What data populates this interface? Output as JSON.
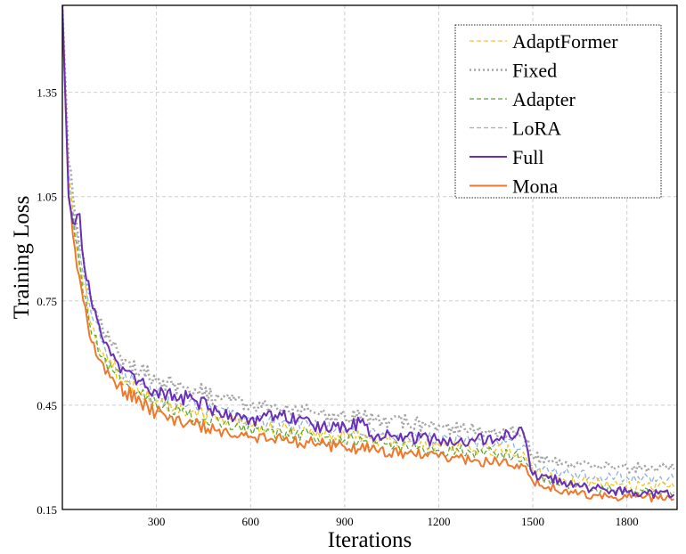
{
  "chart_data": {
    "type": "line",
    "title": "",
    "xlabel": "Iterations",
    "ylabel": "Training Loss",
    "xlim": [
      0,
      1960
    ],
    "ylim": [
      0.15,
      1.6
    ],
    "xticks": [
      300,
      600,
      900,
      1200,
      1500,
      1800
    ],
    "yticks": [
      0.15,
      0.45,
      0.75,
      1.05,
      1.35
    ],
    "ytick_labels": [
      "0.15",
      "0.45",
      "0.75",
      "1.05",
      "1.35"
    ],
    "grid": true,
    "legend_position": "top-right",
    "series": [
      {
        "name": "AdaptFormer",
        "color": "#f5c518",
        "dash": "dashed",
        "x": [
          0,
          20,
          40,
          60,
          80,
          100,
          130,
          160,
          200,
          250,
          300,
          400,
          500,
          600,
          700,
          800,
          900,
          1000,
          1100,
          1200,
          1300,
          1400,
          1470,
          1500,
          1550,
          1600,
          1650,
          1700,
          1750,
          1800,
          1850,
          1900,
          1950
        ],
        "y": [
          1.6,
          1.1,
          0.95,
          0.84,
          0.74,
          0.67,
          0.6,
          0.56,
          0.52,
          0.49,
          0.46,
          0.43,
          0.41,
          0.39,
          0.385,
          0.37,
          0.365,
          0.35,
          0.345,
          0.335,
          0.325,
          0.32,
          0.315,
          0.26,
          0.245,
          0.235,
          0.23,
          0.225,
          0.222,
          0.22,
          0.218,
          0.217,
          0.215
        ]
      },
      {
        "name": "Fixed",
        "color": "#a6a6a6",
        "dash": "dotted",
        "x": [
          0,
          20,
          40,
          60,
          80,
          100,
          130,
          160,
          200,
          250,
          300,
          400,
          500,
          600,
          700,
          800,
          900,
          1000,
          1100,
          1200,
          1300,
          1400,
          1470,
          1500,
          1550,
          1600,
          1650,
          1700,
          1750,
          1800,
          1850,
          1900,
          1950
        ],
        "y": [
          1.6,
          1.15,
          1.0,
          0.9,
          0.8,
          0.72,
          0.66,
          0.62,
          0.58,
          0.55,
          0.52,
          0.5,
          0.47,
          0.45,
          0.44,
          0.43,
          0.42,
          0.41,
          0.4,
          0.39,
          0.38,
          0.375,
          0.37,
          0.3,
          0.29,
          0.285,
          0.28,
          0.278,
          0.275,
          0.272,
          0.27,
          0.268,
          0.266
        ]
      },
      {
        "name": "Adapter",
        "color": "#5fa832",
        "dash": "dashed",
        "x": [
          0,
          20,
          40,
          60,
          80,
          100,
          130,
          160,
          200,
          250,
          300,
          400,
          500,
          600,
          700,
          800,
          900,
          1000,
          1100,
          1200,
          1300,
          1400,
          1470,
          1500,
          1550,
          1600,
          1650,
          1700,
          1750,
          1800,
          1850,
          1900,
          1950
        ],
        "y": [
          1.6,
          1.08,
          0.93,
          0.82,
          0.72,
          0.65,
          0.59,
          0.55,
          0.51,
          0.48,
          0.45,
          0.42,
          0.4,
          0.38,
          0.37,
          0.36,
          0.35,
          0.34,
          0.33,
          0.32,
          0.315,
          0.31,
          0.3,
          0.25,
          0.235,
          0.225,
          0.218,
          0.212,
          0.208,
          0.205,
          0.203,
          0.202,
          0.2
        ]
      },
      {
        "name": "LoRA",
        "color": "#8fb1de",
        "dash": "dashed",
        "x": [
          0,
          20,
          40,
          60,
          80,
          100,
          130,
          160,
          200,
          250,
          300,
          400,
          500,
          600,
          700,
          800,
          900,
          1000,
          1100,
          1200,
          1300,
          1400,
          1470,
          1500,
          1550,
          1600,
          1650,
          1700,
          1750,
          1800,
          1850,
          1900,
          1950
        ],
        "y": [
          1.6,
          1.12,
          0.98,
          0.86,
          0.76,
          0.69,
          0.63,
          0.58,
          0.54,
          0.51,
          0.48,
          0.45,
          0.43,
          0.41,
          0.4,
          0.39,
          0.38,
          0.37,
          0.36,
          0.35,
          0.345,
          0.34,
          0.335,
          0.275,
          0.26,
          0.255,
          0.25,
          0.247,
          0.245,
          0.243,
          0.24,
          0.238,
          0.236
        ]
      },
      {
        "name": "Full",
        "color": "#6a2fb8",
        "dash": "solid",
        "x": [
          0,
          20,
          40,
          55,
          70,
          90,
          110,
          140,
          170,
          200,
          250,
          300,
          400,
          500,
          600,
          700,
          800,
          900,
          950,
          1000,
          1100,
          1200,
          1300,
          1400,
          1470,
          1500,
          1550,
          1600,
          1650,
          1700,
          1750,
          1800,
          1850,
          1900,
          1950
        ],
        "y": [
          1.6,
          1.05,
          0.97,
          1.0,
          0.85,
          0.76,
          0.7,
          0.63,
          0.58,
          0.55,
          0.52,
          0.49,
          0.47,
          0.43,
          0.41,
          0.42,
          0.39,
          0.39,
          0.4,
          0.36,
          0.36,
          0.35,
          0.35,
          0.36,
          0.37,
          0.25,
          0.24,
          0.23,
          0.215,
          0.21,
          0.205,
          0.2,
          0.198,
          0.195,
          0.193
        ]
      },
      {
        "name": "Mona",
        "color": "#f0782d",
        "dash": "solid",
        "x": [
          0,
          20,
          40,
          60,
          80,
          100,
          130,
          160,
          200,
          250,
          300,
          400,
          500,
          600,
          700,
          800,
          900,
          1000,
          1100,
          1200,
          1300,
          1400,
          1470,
          1500,
          1550,
          1600,
          1650,
          1700,
          1750,
          1800,
          1850,
          1900,
          1950
        ],
        "y": [
          1.6,
          1.05,
          0.9,
          0.79,
          0.69,
          0.63,
          0.57,
          0.53,
          0.49,
          0.46,
          0.43,
          0.4,
          0.38,
          0.36,
          0.35,
          0.34,
          0.33,
          0.32,
          0.31,
          0.3,
          0.29,
          0.285,
          0.275,
          0.23,
          0.215,
          0.205,
          0.198,
          0.192,
          0.188,
          0.185,
          0.183,
          0.181,
          0.18
        ]
      }
    ]
  }
}
